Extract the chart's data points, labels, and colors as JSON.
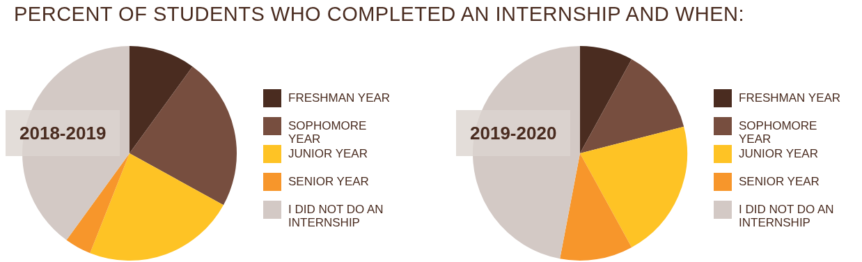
{
  "chart_data": [
    {
      "type": "pie",
      "title": "PERCENT OF STUDENTS WHO COMPLETED AN INTERNSHIP AND WHEN:",
      "subtitle": "2018-2019",
      "categories": [
        "FRESHMAN YEAR",
        "SOPHOMORE YEAR",
        "JUNIOR YEAR",
        "SENIOR YEAR",
        "I DID NOT DO AN INTERNSHIP"
      ],
      "values": [
        10,
        23,
        23,
        4,
        40
      ],
      "colors": [
        "#4a2c20",
        "#774e3f",
        "#fec325",
        "#f7962b",
        "#d3c9c5"
      ],
      "legend": "right"
    },
    {
      "type": "pie",
      "subtitle": "2019-2020",
      "categories": [
        "FRESHMAN YEAR",
        "SOPHOMORE YEAR",
        "JUNIOR YEAR",
        "SENIOR YEAR",
        "I DID NOT DO AN INTERNSHIP"
      ],
      "values": [
        8,
        13,
        21,
        11,
        47
      ],
      "colors": [
        "#4a2c20",
        "#774e3f",
        "#fec325",
        "#f7962b",
        "#d3c9c5"
      ],
      "legend": "right"
    }
  ]
}
